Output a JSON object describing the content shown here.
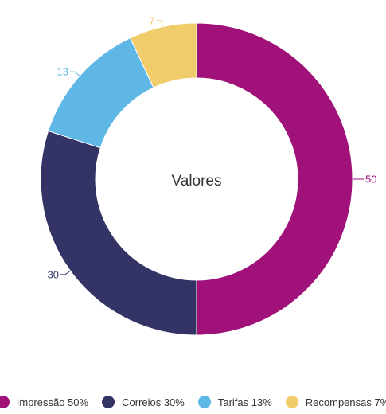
{
  "chart_data": {
    "type": "pie",
    "variant": "donut",
    "title": "Valores",
    "categories": [
      "Impressão",
      "Correios",
      "Tarifas",
      "Recompensas"
    ],
    "values": [
      50,
      30,
      13,
      7
    ],
    "colors": [
      "#a0117a",
      "#333366",
      "#5fb7e5",
      "#f0cc6b"
    ],
    "legend": {
      "position": "bottom",
      "items": [
        "Impressão 50%",
        "Correios 30%",
        "Tarifas 13%",
        "Recompensas 7%"
      ]
    }
  }
}
